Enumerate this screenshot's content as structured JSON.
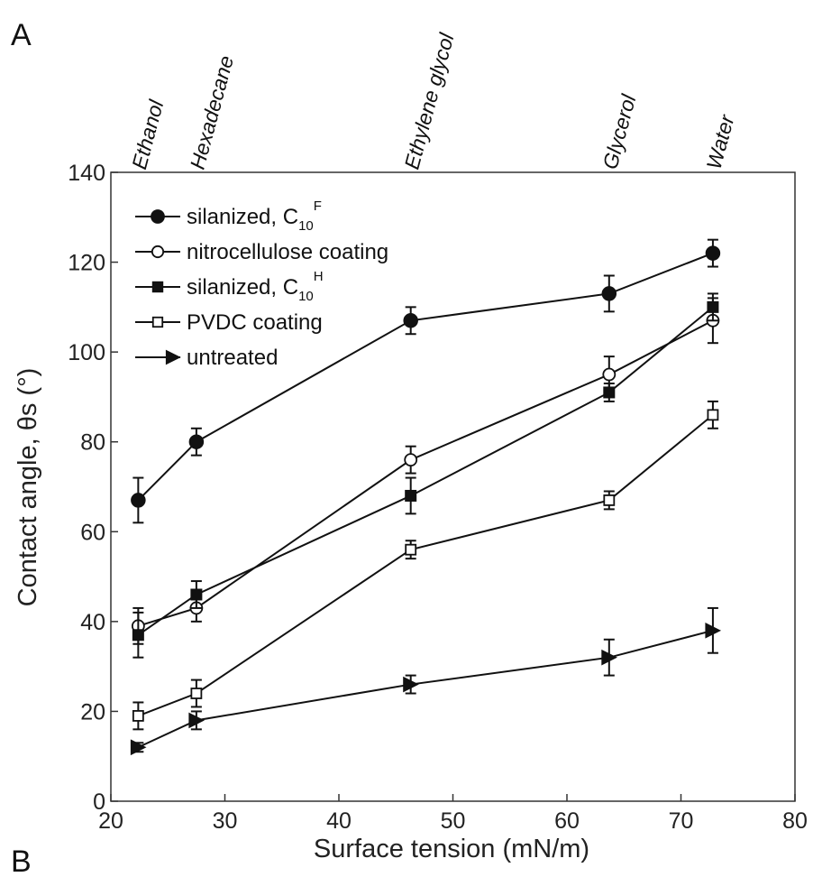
{
  "panel_labels": {
    "top": "A",
    "bottom": "B"
  },
  "chart_data": {
    "type": "line",
    "title": "",
    "xlabel": "Surface tension (mN/m)",
    "ylabel": "Contact angle, θs (°)",
    "xlim": [
      20,
      80
    ],
    "ylim": [
      0,
      140
    ],
    "xticks": [
      20,
      30,
      40,
      50,
      60,
      70,
      80
    ],
    "yticks": [
      0,
      20,
      40,
      60,
      80,
      100,
      120,
      140
    ],
    "grid": false,
    "legend_position": "top-left",
    "top_annotations": [
      {
        "x": 22.4,
        "label": "Ethanol"
      },
      {
        "x": 27.5,
        "label": "Hexadecane"
      },
      {
        "x": 46.3,
        "label": "Ethylene glycol"
      },
      {
        "x": 63.7,
        "label": "Glycerol"
      },
      {
        "x": 72.8,
        "label": "Water"
      }
    ],
    "x": [
      22.4,
      27.5,
      46.3,
      63.7,
      72.8
    ],
    "series": [
      {
        "name": "silanized, C",
        "name_sub": "10",
        "name_sup": "F",
        "marker": "filled-circle",
        "values": [
          67,
          80,
          107,
          113,
          122
        ],
        "errors": [
          5,
          3,
          3,
          4,
          3
        ]
      },
      {
        "name": "nitrocellulose coating",
        "marker": "open-circle",
        "values": [
          39,
          43,
          76,
          95,
          107
        ],
        "errors": [
          4,
          3,
          3,
          4,
          5
        ]
      },
      {
        "name": "silanized, C",
        "name_sub": "10",
        "name_sup": "H",
        "marker": "filled-square",
        "values": [
          37,
          46,
          68,
          91,
          110
        ],
        "errors": [
          5,
          3,
          4,
          2,
          3
        ]
      },
      {
        "name": "PVDC coating",
        "marker": "open-square",
        "values": [
          19,
          24,
          56,
          67,
          86
        ],
        "errors": [
          3,
          3,
          2,
          2,
          3
        ]
      },
      {
        "name": "untreated",
        "marker": "filled-triangle-right",
        "values": [
          12,
          18,
          26,
          32,
          38
        ],
        "errors": [
          1,
          2,
          2,
          4,
          5
        ]
      }
    ],
    "colors": {
      "line": "#111111",
      "marker": "#111111",
      "axis": "#333333",
      "text": "#222222"
    }
  }
}
